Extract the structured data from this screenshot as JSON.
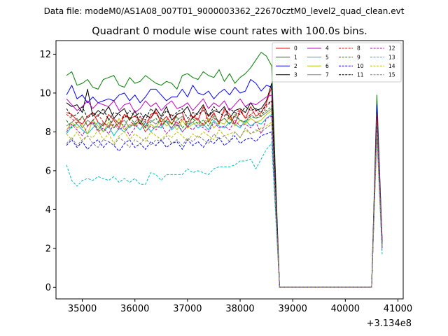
{
  "chart_data": {
    "type": "line",
    "suptitle": "Data file: modeM0/AS1A08_007T01_9000003362_22670cztM0_level2_quad_clean.evt",
    "title": "Quadrant 0 module wise count rates with 100.0s bins.",
    "xlabel": "",
    "ylabel": "",
    "x_offset_label": "+3.134e8",
    "xlim": [
      34500,
      41100
    ],
    "ylim": [
      -0.6,
      12.7
    ],
    "xticks": [
      35000,
      36000,
      37000,
      38000,
      39000,
      40000,
      41000
    ],
    "xtick_labels": [
      "35000",
      "36000",
      "37000",
      "38000",
      "39000",
      "40000",
      "41000"
    ],
    "yticks": [
      0,
      2,
      4,
      6,
      8,
      10,
      12
    ],
    "ytick_labels": [
      "0",
      "2",
      "4",
      "6",
      "8",
      "10",
      "12"
    ],
    "legend_position": "top-right",
    "legend_columns": 4,
    "x_active": [
      34700,
      34800,
      34900,
      35000,
      35100,
      35200,
      35300,
      35400,
      35500,
      35600,
      35700,
      35800,
      35900,
      36000,
      36100,
      36200,
      36300,
      36400,
      36500,
      36600,
      36700,
      36800,
      36900,
      37000,
      37100,
      37200,
      37300,
      37400,
      37500,
      37600,
      37700,
      37800,
      37900,
      38000,
      38100,
      38200,
      38300,
      38400,
      38500,
      38600
    ],
    "x_tail": [
      38750,
      40500,
      40600,
      40700
    ],
    "series": [
      {
        "name": "0",
        "color": "#ff0000",
        "dashed": false,
        "values": [
          9.0,
          8.9,
          8.6,
          8.4,
          8.8,
          9.0,
          8.5,
          8.3,
          8.9,
          8.6,
          8.2,
          8.9,
          8.7,
          8.8,
          8.6,
          8.2,
          8.9,
          9.0,
          8.5,
          8.8,
          8.4,
          8.9,
          9.0,
          8.2,
          8.8,
          8.6,
          9.3,
          8.5,
          9.0,
          8.4,
          9.2,
          8.9,
          8.4,
          9.1,
          8.7,
          9.3,
          8.8,
          9.0,
          9.5,
          10.3
        ],
        "tail": [
          0.0,
          0.0,
          9.0,
          2.3
        ]
      },
      {
        "name": "1",
        "color": "#008000",
        "dashed": false,
        "values": [
          10.9,
          11.1,
          10.4,
          10.5,
          10.7,
          10.3,
          10.2,
          10.7,
          10.8,
          10.9,
          10.4,
          10.3,
          10.8,
          10.5,
          10.6,
          10.9,
          10.7,
          10.5,
          10.4,
          10.6,
          10.5,
          10.2,
          10.9,
          11.0,
          10.8,
          10.7,
          11.1,
          10.9,
          10.8,
          11.2,
          10.6,
          11.0,
          10.5,
          10.8,
          11.0,
          11.3,
          11.7,
          12.1,
          11.9,
          11.4
        ],
        "tail": [
          0.0,
          0.0,
          9.9,
          2.4
        ]
      },
      {
        "name": "2",
        "color": "#0000ff",
        "dashed": false,
        "values": [
          9.9,
          10.4,
          9.7,
          9.9,
          9.5,
          9.8,
          9.5,
          9.6,
          9.7,
          9.6,
          9.9,
          10.0,
          9.6,
          9.9,
          9.5,
          9.8,
          10.2,
          10.2,
          9.9,
          9.6,
          9.8,
          9.8,
          10.2,
          9.8,
          10.4,
          10.0,
          9.9,
          10.1,
          9.7,
          10.0,
          10.2,
          9.9,
          10.3,
          10.0,
          10.1,
          10.7,
          10.5,
          10.1,
          10.4,
          10.3
        ],
        "tail": [
          0.0,
          0.0,
          9.4,
          2.5
        ]
      },
      {
        "name": "3",
        "color": "#000000",
        "dashed": false,
        "values": [
          9.5,
          9.3,
          9.4,
          9.0,
          10.2,
          8.8,
          9.1,
          8.9,
          9.3,
          8.7,
          9.0,
          9.2,
          8.6,
          9.1,
          8.4,
          8.9,
          8.7,
          9.2,
          8.8,
          9.3,
          8.6,
          8.9,
          9.0,
          9.3,
          8.7,
          9.0,
          9.4,
          8.8,
          9.1,
          9.0,
          9.3,
          8.7,
          9.1,
          9.2,
          9.0,
          9.5,
          9.1,
          9.2,
          9.6,
          10.5
        ],
        "tail": [
          0.0,
          0.0,
          8.8,
          2.2
        ]
      },
      {
        "name": "4",
        "color": "#bf00bf",
        "dashed": false,
        "values": [
          9.7,
          9.4,
          9.1,
          9.3,
          9.6,
          9.2,
          9.5,
          9.4,
          9.3,
          9.6,
          9.1,
          9.4,
          9.5,
          9.0,
          9.2,
          9.6,
          9.3,
          9.5,
          9.1,
          9.4,
          9.6,
          9.2,
          9.3,
          9.5,
          9.1,
          9.4,
          9.7,
          9.2,
          9.5,
          9.3,
          9.6,
          9.1,
          9.4,
          9.7,
          9.3,
          9.5,
          9.4,
          9.6,
          9.8,
          9.9
        ],
        "tail": [
          0.0,
          0.0,
          8.7,
          2.4
        ]
      },
      {
        "name": "5",
        "color": "#00bfbf",
        "dashed": false,
        "values": [
          7.9,
          8.3,
          8.4,
          8.1,
          7.9,
          8.2,
          8.5,
          8.0,
          8.3,
          7.8,
          8.2,
          8.0,
          8.3,
          8.4,
          8.1,
          8.5,
          8.0,
          8.3,
          8.2,
          8.6,
          8.1,
          8.4,
          8.0,
          8.3,
          8.5,
          8.2,
          8.4,
          8.1,
          8.6,
          8.3,
          8.2,
          8.5,
          8.4,
          8.2,
          8.6,
          8.3,
          8.5,
          8.4,
          8.7,
          8.9
        ],
        "tail": [
          0.0,
          0.0,
          8.5,
          2.0
        ]
      },
      {
        "name": "6",
        "color": "#bfbf00",
        "dashed": false,
        "values": [
          8.1,
          8.5,
          8.2,
          8.4,
          7.9,
          8.6,
          8.3,
          8.0,
          8.5,
          8.2,
          8.7,
          8.1,
          8.4,
          8.3,
          8.6,
          8.0,
          8.4,
          8.2,
          8.7,
          8.3,
          8.5,
          8.1,
          8.6,
          8.2,
          8.4,
          8.5,
          8.3,
          8.7,
          8.2,
          8.5,
          8.4,
          8.8,
          8.3,
          8.6,
          8.4,
          8.7,
          8.5,
          8.6,
          8.9,
          9.1
        ],
        "tail": [
          0.0,
          0.0,
          8.6,
          2.1
        ]
      },
      {
        "name": "7",
        "color": "#808080",
        "dashed": false,
        "values": [
          8.3,
          8.5,
          8.7,
          8.2,
          8.6,
          8.4,
          8.1,
          8.5,
          8.3,
          8.7,
          8.4,
          8.6,
          8.2,
          8.5,
          8.8,
          8.3,
          8.6,
          8.4,
          8.7,
          8.5,
          8.2,
          8.6,
          8.8,
          8.4,
          8.5,
          8.7,
          8.3,
          8.6,
          8.9,
          8.5,
          8.7,
          8.4,
          8.8,
          8.6,
          8.5,
          8.9,
          8.7,
          8.8,
          9.0,
          9.2
        ],
        "tail": [
          0.0,
          0.0,
          8.4,
          2.2
        ]
      },
      {
        "name": "8",
        "color": "#ff0000",
        "dashed": true,
        "values": [
          8.9,
          8.7,
          8.4,
          8.8,
          8.3,
          8.6,
          8.9,
          8.5,
          8.2,
          8.7,
          8.4,
          8.9,
          8.6,
          8.3,
          8.8,
          8.5,
          8.7,
          9.1,
          8.4,
          8.6,
          8.9,
          8.3,
          8.7,
          8.5,
          9.0,
          8.6,
          8.4,
          8.9,
          8.7,
          8.5,
          9.1,
          8.6,
          8.8,
          9.2,
          8.7,
          8.9,
          9.1,
          8.8,
          9.3,
          9.6
        ],
        "tail": [
          0.0,
          0.0,
          8.9,
          2.3
        ]
      },
      {
        "name": "9",
        "color": "#008000",
        "dashed": true,
        "values": [
          8.6,
          8.2,
          8.5,
          8.8,
          8.3,
          8.6,
          8.1,
          8.4,
          8.7,
          8.2,
          8.5,
          8.3,
          8.8,
          8.4,
          8.6,
          8.2,
          8.5,
          8.7,
          8.3,
          8.6,
          8.4,
          8.8,
          8.2,
          8.5,
          8.7,
          8.4,
          8.6,
          8.3,
          8.8,
          8.5,
          8.7,
          8.4,
          8.9,
          8.6,
          8.5,
          8.8,
          8.7,
          8.9,
          9.1,
          9.3
        ],
        "tail": [
          0.0,
          0.0,
          8.3,
          2.1
        ]
      },
      {
        "name": "10",
        "color": "#0000ff",
        "dashed": true,
        "values": [
          7.3,
          7.6,
          7.2,
          7.5,
          7.1,
          7.4,
          7.6,
          7.2,
          7.5,
          7.3,
          7.0,
          7.4,
          7.6,
          7.2,
          7.4,
          7.1,
          7.5,
          7.3,
          7.6,
          7.2,
          7.4,
          7.5,
          7.1,
          7.6,
          7.3,
          7.5,
          7.2,
          7.6,
          7.4,
          7.7,
          7.3,
          7.5,
          7.8,
          7.4,
          7.6,
          7.7,
          7.5,
          7.8,
          7.9,
          8.0
        ],
        "tail": [
          0.0,
          0.0,
          8.1,
          1.9
        ]
      },
      {
        "name": "11",
        "color": "#000000",
        "dashed": true,
        "values": [
          9.2,
          8.8,
          8.9,
          9.3,
          8.7,
          9.0,
          8.8,
          9.2,
          8.6,
          9.0,
          8.9,
          8.7,
          9.1,
          8.8,
          9.0,
          8.6,
          9.2,
          8.9,
          8.7,
          9.1,
          8.8,
          9.0,
          9.2,
          8.7,
          9.0,
          8.9,
          9.1,
          8.8,
          9.3,
          9.0,
          8.8,
          9.2,
          9.0,
          8.9,
          9.3,
          9.1,
          9.2,
          9.0,
          9.4,
          9.6
        ],
        "tail": [
          0.0,
          0.0,
          8.2,
          2.2
        ]
      },
      {
        "name": "12",
        "color": "#bf00bf",
        "dashed": true,
        "values": [
          8.0,
          8.4,
          8.1,
          7.8,
          8.3,
          8.5,
          8.0,
          8.2,
          7.9,
          8.4,
          8.1,
          8.3,
          7.8,
          8.2,
          8.5,
          8.0,
          8.3,
          8.1,
          8.4,
          7.9,
          8.2,
          8.5,
          8.0,
          8.3,
          8.1,
          8.4,
          8.2,
          8.0,
          8.5,
          8.2,
          8.3,
          8.1,
          8.6,
          8.3,
          8.4,
          8.2,
          8.5,
          7.9,
          8.7,
          8.8
        ],
        "tail": [
          0.0,
          0.0,
          8.0,
          2.0
        ]
      },
      {
        "name": "13",
        "color": "#00bfbf",
        "dashed": true,
        "values": [
          6.3,
          5.5,
          5.2,
          5.5,
          5.6,
          5.5,
          5.7,
          5.6,
          5.5,
          5.7,
          5.4,
          5.6,
          5.4,
          5.6,
          5.3,
          5.3,
          5.9,
          5.8,
          5.5,
          5.8,
          5.8,
          5.8,
          5.8,
          6.1,
          5.9,
          6.0,
          5.9,
          5.8,
          6.1,
          6.2,
          6.2,
          6.2,
          6.3,
          6.5,
          6.5,
          6.6,
          6.1,
          6.6,
          7.1,
          7.4
        ],
        "tail": [
          0.0,
          0.0,
          7.8,
          1.7
        ]
      },
      {
        "name": "14",
        "color": "#bfbf00",
        "dashed": true,
        "values": [
          7.9,
          7.6,
          8.0,
          7.5,
          7.8,
          7.7,
          8.1,
          7.6,
          7.9,
          7.4,
          7.8,
          8.0,
          7.6,
          7.9,
          7.7,
          7.5,
          8.0,
          7.8,
          7.6,
          7.9,
          7.7,
          8.0,
          7.8,
          7.5,
          7.9,
          7.7,
          8.0,
          7.8,
          7.6,
          8.1,
          7.8,
          7.9,
          8.0,
          7.7,
          8.1,
          7.9,
          8.0,
          8.2,
          8.3,
          8.5
        ],
        "tail": [
          0.0,
          0.0,
          7.9,
          2.0
        ]
      },
      {
        "name": "15",
        "color": "#808080",
        "dashed": true,
        "values": [
          7.4,
          7.7,
          7.3,
          7.6,
          7.8,
          7.4,
          7.2,
          7.6,
          7.5,
          7.3,
          7.7,
          7.5,
          7.2,
          7.6,
          7.4,
          7.7,
          7.3,
          7.6,
          7.5,
          7.8,
          7.4,
          7.6,
          7.3,
          7.7,
          7.5,
          7.8,
          7.6,
          7.4,
          7.9,
          7.6,
          7.8,
          7.5,
          8.0,
          7.7,
          8.2,
          7.9,
          8.1,
          8.0,
          8.2,
          8.4
        ],
        "tail": [
          0.0,
          0.0,
          8.2,
          2.1
        ]
      }
    ]
  }
}
